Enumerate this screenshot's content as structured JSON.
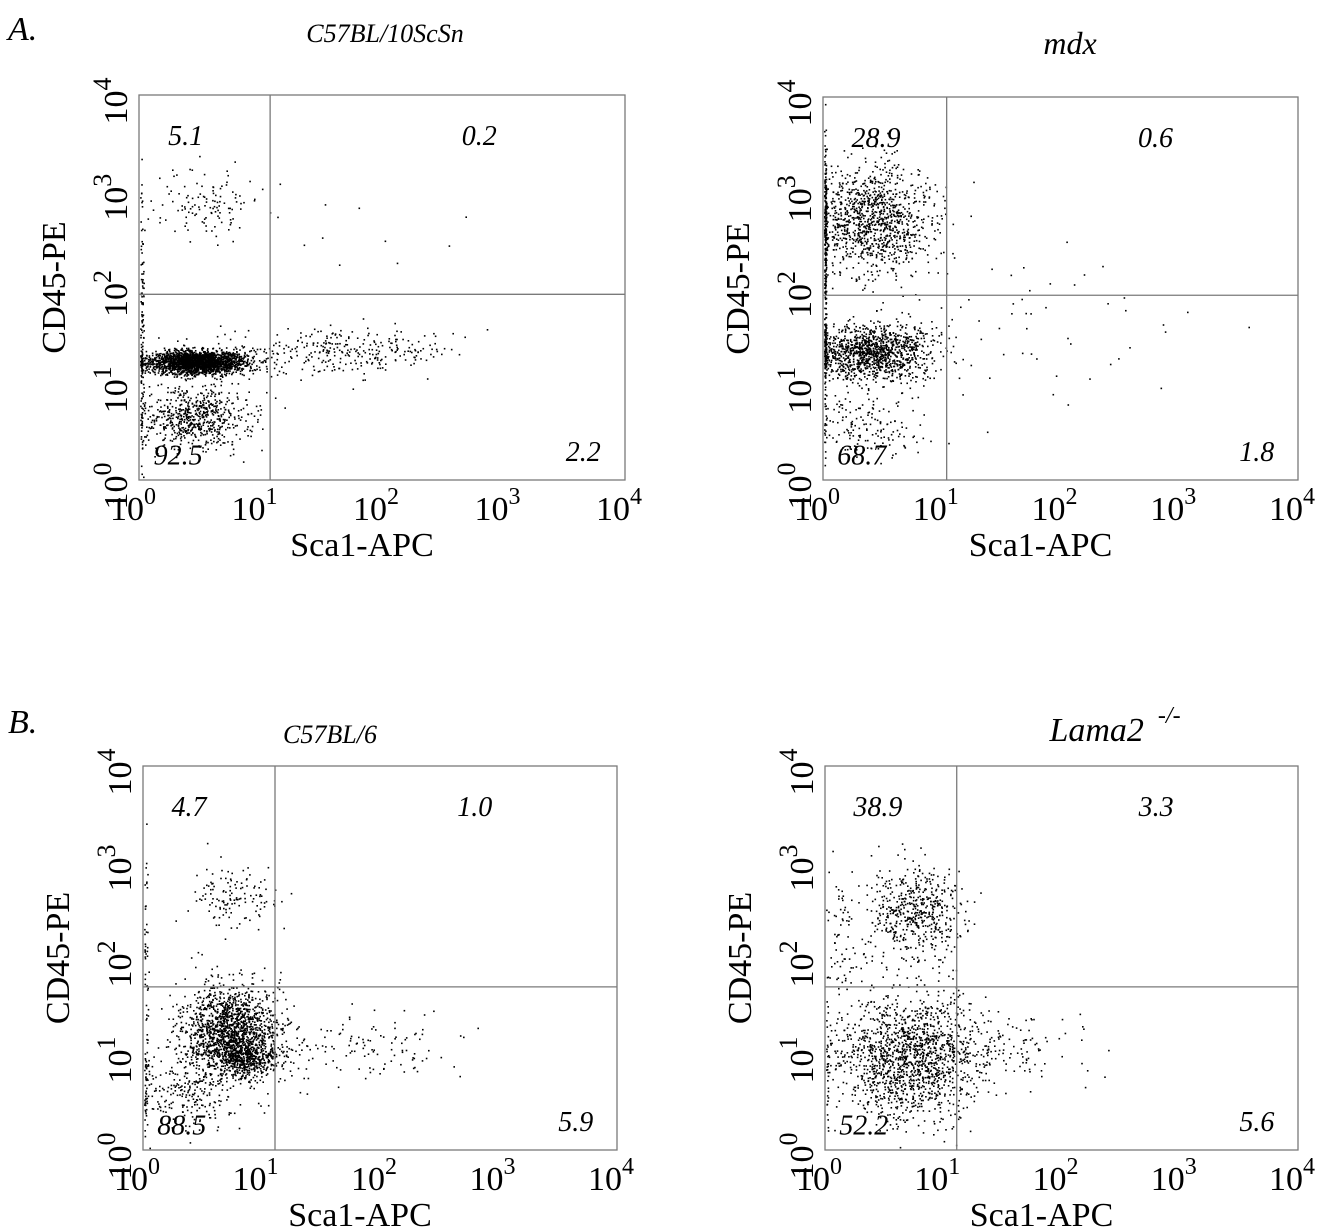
{
  "panel_letters": [
    "A.",
    "B."
  ],
  "chart_data": [
    {
      "type": "scatter",
      "panel": "A.",
      "title": "C57BL/10ScSn",
      "xlabel": "Sca1-APC",
      "ylabel": "CD45-PE",
      "x_scale": "log",
      "y_scale": "log",
      "xlim": [
        1,
        10000
      ],
      "ylim": [
        1,
        10000
      ],
      "x_ticks": [
        "10^0",
        "10^1",
        "10^2",
        "10^3",
        "10^4"
      ],
      "y_ticks": [
        "10^0",
        "10^1",
        "10^2",
        "10^3",
        "10^4"
      ],
      "gate": {
        "x": 12,
        "y": 85
      },
      "quadrant_percentages": {
        "upper_left": "5.1",
        "upper_right": "0.2",
        "lower_left": "92.5",
        "lower_right": "2.2"
      },
      "clusters": [
        {
          "cx": 3,
          "cy": 17,
          "sx": 1.6,
          "sy": 1.15,
          "n": 2200
        },
        {
          "cx": 2.8,
          "cy": 4.5,
          "sx": 1.7,
          "sy": 1.45,
          "n": 650
        },
        {
          "cx": 45,
          "cy": 22,
          "sx": 3.2,
          "sy": 1.3,
          "n": 320
        },
        {
          "cx": 3.5,
          "cy": 750,
          "sx": 1.6,
          "sy": 1.5,
          "n": 120
        },
        {
          "cx": 1.05,
          "cy": 30,
          "sx": 1.02,
          "sy": 5,
          "n": 110
        },
        {
          "cx": 60,
          "cy": 450,
          "sx": 6,
          "sy": 2.5,
          "n": 14
        }
      ]
    },
    {
      "type": "scatter",
      "panel": "A.",
      "title": "mdx",
      "xlabel": "Sca1-APC",
      "ylabel": "CD45-PE",
      "x_scale": "log",
      "y_scale": "log",
      "xlim": [
        1,
        10000
      ],
      "ylim": [
        1,
        10000
      ],
      "x_ticks": [
        "10^0",
        "10^1",
        "10^2",
        "10^3",
        "10^4"
      ],
      "y_ticks": [
        "10^0",
        "10^1",
        "10^2",
        "10^3",
        "10^4"
      ],
      "gate": {
        "x": 11,
        "y": 85
      },
      "quadrant_percentages": {
        "upper_left": "28.9",
        "upper_right": "0.6",
        "lower_left": "68.7",
        "lower_right": "1.8"
      },
      "clusters": [
        {
          "cx": 2.5,
          "cy": 520,
          "sx": 1.8,
          "sy": 1.9,
          "n": 1150
        },
        {
          "cx": 2.5,
          "cy": 22,
          "sx": 1.8,
          "sy": 1.4,
          "n": 1250
        },
        {
          "cx": 2.6,
          "cy": 4,
          "sx": 1.8,
          "sy": 1.5,
          "n": 160
        },
        {
          "cx": 1.03,
          "cy": 100,
          "sx": 1.02,
          "sy": 8,
          "n": 220
        },
        {
          "cx": 60,
          "cy": 45,
          "sx": 5,
          "sy": 3,
          "n": 55
        }
      ]
    },
    {
      "type": "scatter",
      "panel": "B.",
      "title": "C57BL/6",
      "xlabel": "Sca1-APC",
      "ylabel": "CD45-PE",
      "x_scale": "log",
      "y_scale": "log",
      "xlim": [
        1,
        10000
      ],
      "ylim": [
        1,
        10000
      ],
      "x_ticks": [
        "10^0",
        "10^1",
        "10^2",
        "10^3",
        "10^4"
      ],
      "y_ticks": [
        "10^0",
        "10^1",
        "10^2",
        "10^3",
        "10^4"
      ],
      "gate": {
        "x": 13,
        "y": 50
      },
      "quadrant_percentages": {
        "upper_left": "4.7",
        "upper_right": "1.0",
        "lower_left": "88.5",
        "lower_right": "5.9"
      },
      "clusters": [
        {
          "cx": 5.5,
          "cy": 18,
          "sx": 1.6,
          "sy": 1.7,
          "n": 1500
        },
        {
          "cx": 7,
          "cy": 9,
          "sx": 1.4,
          "sy": 1.25,
          "n": 500
        },
        {
          "cx": 2.2,
          "cy": 4,
          "sx": 1.7,
          "sy": 1.6,
          "n": 260
        },
        {
          "cx": 60,
          "cy": 12,
          "sx": 3,
          "sy": 1.5,
          "n": 140
        },
        {
          "cx": 6,
          "cy": 420,
          "sx": 1.6,
          "sy": 1.5,
          "n": 130
        },
        {
          "cx": 1.05,
          "cy": 40,
          "sx": 1.03,
          "sy": 6,
          "n": 60
        }
      ]
    },
    {
      "type": "scatter",
      "panel": "B.",
      "title": "Lama2",
      "title_superscript": "-/-",
      "xlabel": "Sca1-APC",
      "ylabel": "CD45-PE",
      "x_scale": "log",
      "y_scale": "log",
      "xlim": [
        1,
        10000
      ],
      "ylim": [
        1,
        10000
      ],
      "x_ticks": [
        "10^0",
        "10^1",
        "10^2",
        "10^3",
        "10^4"
      ],
      "y_ticks": [
        "10^0",
        "10^1",
        "10^2",
        "10^3",
        "10^4"
      ],
      "gate": {
        "x": 13,
        "y": 50
      },
      "quadrant_percentages": {
        "upper_left": "38.9",
        "upper_right": "3.3",
        "lower_left": "52.2",
        "lower_right": "5.6"
      },
      "clusters": [
        {
          "cx": 5.5,
          "cy": 280,
          "sx": 1.6,
          "sy": 1.8,
          "n": 550
        },
        {
          "cx": 5,
          "cy": 9,
          "sx": 2,
          "sy": 2.1,
          "n": 1500
        },
        {
          "cx": 28,
          "cy": 12,
          "sx": 2.2,
          "sy": 1.6,
          "n": 130
        },
        {
          "cx": 1.3,
          "cy": 150,
          "sx": 1.2,
          "sy": 2.5,
          "n": 70
        }
      ]
    }
  ]
}
